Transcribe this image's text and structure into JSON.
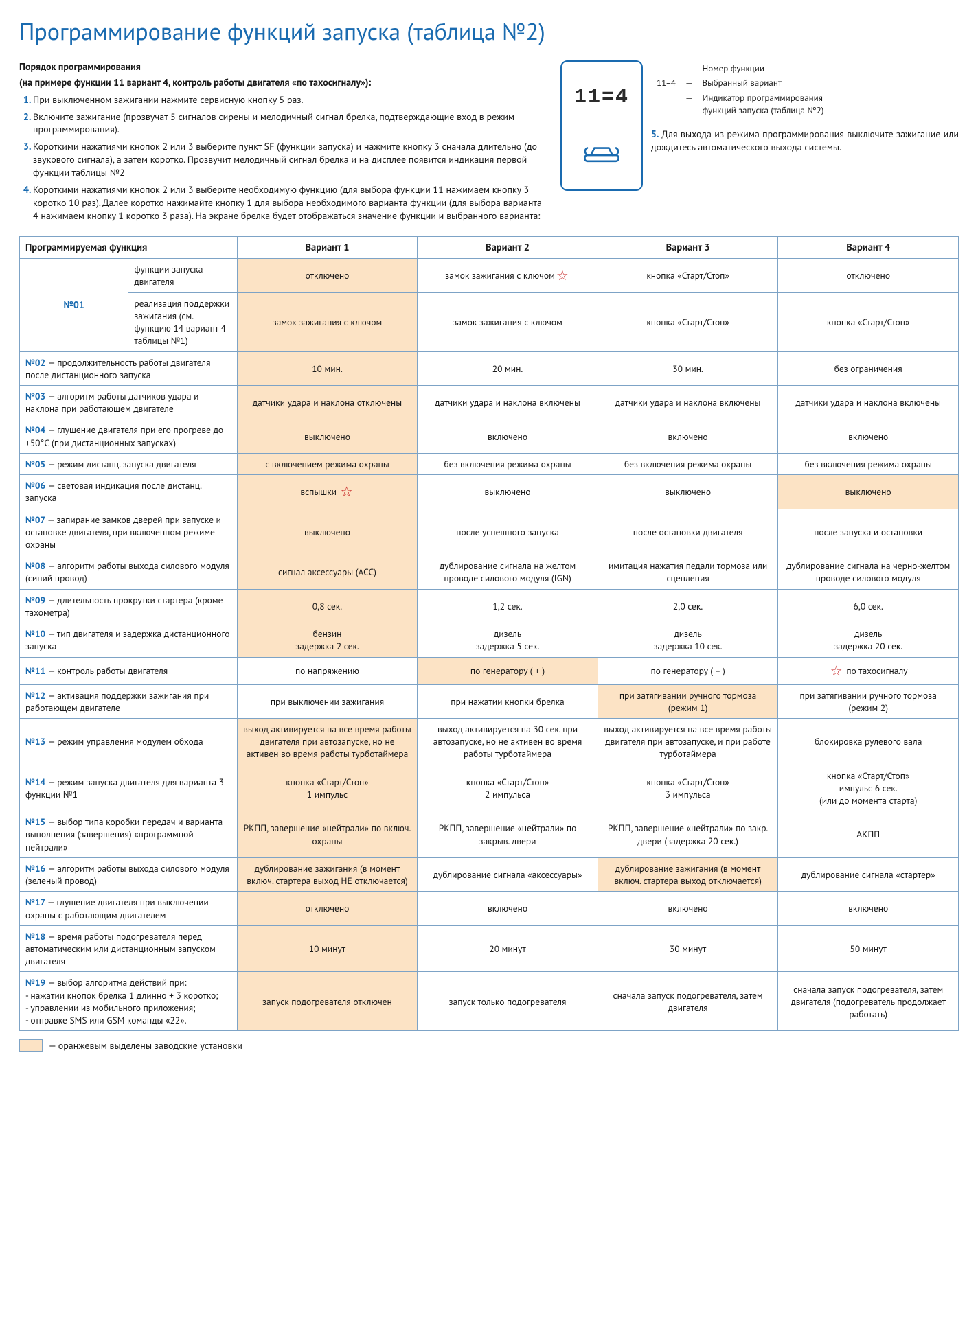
{
  "title": "Программирование функций запуска (таблица №2)",
  "order": {
    "heading": "Порядок программирования",
    "sub": "(на примере функции 11 вариант 4, контроль работы двигателя «по тахосигналу»):",
    "steps": [
      "При выключенном зажигании нажмите сервисную кнопку 5 раз.",
      "Включите зажигание (прозвучат 5 сигналов сирены и мелодичный сигнал брелка, подтверждающие вход в режим программирования).",
      "Короткими нажатиями кнопок 2 или 3 выберите пункт SF (функции запуска) и нажмите кнопку 3 сначала длительно (до звукового сигнала), а затем коротко. Прозвучит мелодичный сигнал брелка и на дисплее появится индикация первой функции таблицы №2",
      "Короткими нажатиями кнопок 2 или 3 выберите необходимую функцию (для выбора функции 11 нажимаем кнопку 3 коротко 10 раз). Далее коротко нажимайте кнопку 1 для выбора необходимого варианта функции (для выбора варианта 4 нажимаем кнопку 1 коротко 3 раза). На экране брелка будет отображаться значение функции и выбранного варианта:"
    ]
  },
  "remote_display": "11=4",
  "callout_display": "11=4",
  "callouts": {
    "a": "Номер функции",
    "b": "Выбранный вариант",
    "c": "Индикатор программирования функций запуска (таблица №2)"
  },
  "step5": "Для выхода из режима программирования выключите зажигание или дождитесь автоматического выхода системы.",
  "table": {
    "head": [
      "Программируемая функция",
      "Вариант 1",
      "Вариант 2",
      "Вариант 3",
      "Вариант 4"
    ],
    "rows": [
      {
        "id": "№01",
        "sublabels": [
          "функции запуска двигателя",
          "реализация поддержки зажигания (см. функцию 14 вариант 4 таблицы №1)"
        ],
        "cells": [
          [
            "отключено",
            "замок зажигания с ключом★",
            "кнопка «Старт/Стоп»",
            "отключено"
          ],
          [
            "замок зажигания с ключом",
            "замок зажигания с ключом",
            "кнопка «Старт/Стоп»",
            "кнопка «Старт/Стоп»"
          ]
        ],
        "hl": [
          [
            0
          ],
          [
            0
          ]
        ]
      },
      {
        "id": "№02",
        "label": "— продолжительность работы двигателя после дистанционного запуска",
        "cells": [
          "10 мин.",
          "20 мин.",
          "30 мин.",
          "без ограничения"
        ],
        "hl": [
          0
        ]
      },
      {
        "id": "№03",
        "label": "— алгоритм работы датчиков удара и наклона при работающем двигателе",
        "cells": [
          "датчики удара и наклона отключены",
          "датчики удара и наклона включены",
          "датчики удара и наклона включены",
          "датчики удара и наклона включены"
        ],
        "hl": [
          0
        ]
      },
      {
        "id": "№04",
        "label": "— глушение двигателя при его прогреве до +50°C (при дистанционных запусках)",
        "cells": [
          "выключено",
          "включено",
          "включено",
          "включено"
        ],
        "hl": [
          0
        ]
      },
      {
        "id": "№05",
        "label": "— режим дистанц. запуска двигателя",
        "cells": [
          "с включением режима охраны",
          "без включения режима охраны",
          "без включения режима охраны",
          "без включения режима охраны"
        ],
        "hl": [
          0
        ]
      },
      {
        "id": "№06",
        "label": "— световая индикация после дистанц. запуска",
        "cells": [
          "вспышки ★",
          "выключено",
          "выключено",
          "выключено"
        ],
        "hl": [
          0,
          3
        ]
      },
      {
        "id": "№07",
        "label": "— запирание замков дверей при запуске и остановке двигателя, при включенном режиме охраны",
        "cells": [
          "выключено",
          "после успешного запуска",
          "после остановки двигателя",
          "после запуска и остановки"
        ],
        "hl": [
          0
        ]
      },
      {
        "id": "№08",
        "label": "— алгоритм работы выхода силового модуля (синий провод)",
        "cells": [
          "сигнал аксессуары (ACC)",
          "дублирование сигнала на желтом проводе силового модуля (IGN)",
          "имитация нажатия педали тормоза или сцепления",
          "дублирование сигнала на черно-желтом проводе силового модуля"
        ],
        "hl": [
          0
        ]
      },
      {
        "id": "№09",
        "label": "— длительность прокрутки стартера (кроме тахометра)",
        "cells": [
          "0,8 сек.",
          "1,2 сек.",
          "2,0 сек.",
          "6,0 сек."
        ],
        "hl": [
          0
        ]
      },
      {
        "id": "№10",
        "label": "— тип двигателя и задержка дистанционного запуска",
        "cells": [
          "бензин\nзадержка 2 сек.",
          "дизель\nзадержка 5 сек.",
          "дизель\nзадержка 10 сек.",
          "дизель\nзадержка 20 сек."
        ],
        "hl": [
          0
        ]
      },
      {
        "id": "№11",
        "label": "— контроль работы двигателя",
        "cells": [
          "по напряжению",
          "по генератору ( + )",
          "по генератору ( – )",
          "★ по тахосигналу"
        ],
        "hl": [
          1
        ]
      },
      {
        "id": "№12",
        "label": "— активация поддержки зажигания при работающем двигателе",
        "cells": [
          "при выключении зажигания",
          "при нажатии кнопки брелка",
          "при затягивании ручного тормоза (режим 1)",
          "при затягивании ручного тормоза (режим 2)"
        ],
        "hl": [
          2
        ]
      },
      {
        "id": "№13",
        "label": "— режим управления модулем обхода",
        "cells": [
          "выход активируется на все время работы двигателя при автозапуске, но не активен во время работы турботаймера",
          "выход активируется на 30 сек. при автозапуске, но не активен во время работы турботаймера",
          "выход активируется на все время работы двигателя при автозапуске, и при работе турботаймера",
          "блокировка рулевого вала"
        ],
        "hl": [
          0
        ]
      },
      {
        "id": "№14",
        "label": "— режим запуска двигателя для варианта 3 функции №1",
        "cells": [
          "кнопка «Старт/Стоп»\n1 импульс",
          "кнопка «Старт/Стоп»\n2 импульса",
          "кнопка «Старт/Стоп»\n3 импульса",
          "кнопка «Старт/Стоп»\nимпульс 6 сек.\n(или до момента старта)"
        ],
        "hl": [
          0
        ]
      },
      {
        "id": "№15",
        "label": "— выбор типа коробки передач и варианта выполнения (завершения) «программной нейтрали»",
        "cells": [
          "РКПП, завершение «нейтрали» по включ. охраны",
          "РКПП, завершение «нейтрали» по закрыв. двери",
          "РКПП, завершение «нейтрали» по закр. двери (задержка 20 сек.)",
          "АКПП"
        ],
        "hl": [
          0
        ]
      },
      {
        "id": "№16",
        "label": "— алгоритм работы выхода силового модуля (зеленый провод)",
        "cells": [
          "дублирование зажигания (в момент включ. стартера выход НЕ отключается)",
          "дублирование сигнала «аксессуары»",
          "дублирование зажигания (в момент включ. стартера выход отключается)",
          "дублирование сигнала «стартер»"
        ],
        "hl": [
          0,
          2
        ]
      },
      {
        "id": "№17",
        "label": "— глушение двигателя при выключении охраны с работающим двигателем",
        "cells": [
          "отключено",
          "включено",
          "включено",
          "включено"
        ],
        "hl": [
          0
        ]
      },
      {
        "id": "№18",
        "label": "— время работы подогревателя перед автоматическим или дистанционным запуском двигателя",
        "cells": [
          "10 минут",
          "20 минут",
          "30 минут",
          "50 минут"
        ],
        "hl": [
          0
        ]
      },
      {
        "id": "№19",
        "label": "— выбор алгоритма действий при:\n- нажатии кнопок брелка 1 длинно + 3 коротко;\n- управлении из мобильного приложения;\n- отправке SMS или GSM команды «22».",
        "cells": [
          "запуск подогревателя отключен",
          "запуск только подогревателя",
          "сначала запуск подогревателя, затем двигателя",
          "сначала запуск подогревателя, затем двигателя (подогреватель продолжает работать)"
        ],
        "hl": [
          0
        ]
      }
    ]
  },
  "legend": "— оранжевым выделены заводские установки"
}
